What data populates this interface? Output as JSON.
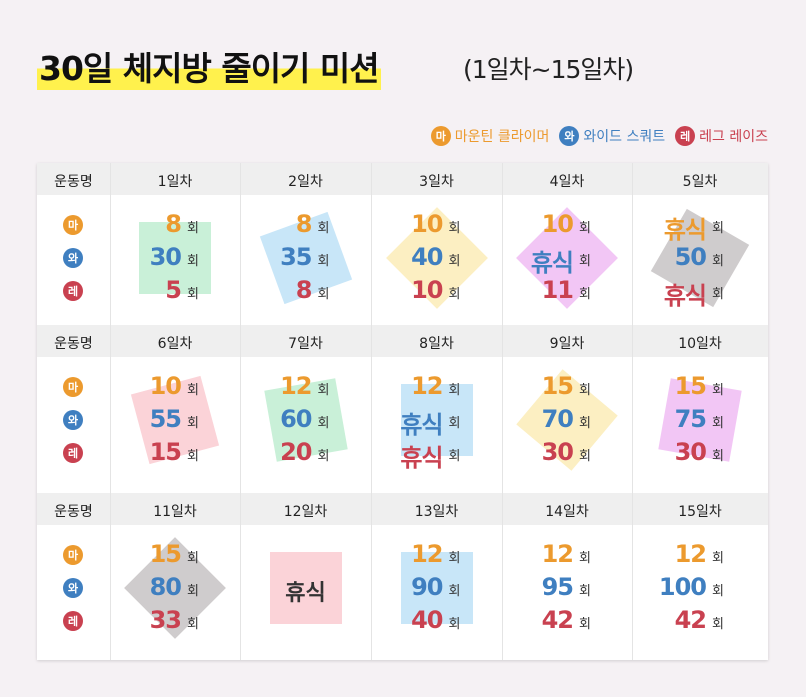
{
  "header": {
    "title": "30일 체지방 줄이기 미션",
    "subtitle": "(1일차~15일차)"
  },
  "legend": [
    {
      "badge": "마",
      "label": "마운틴 클라이머",
      "color": "#ec9a2e"
    },
    {
      "badge": "와",
      "label": "와이드 스쿼트",
      "color": "#3f7fc0"
    },
    {
      "badge": "레",
      "label": "레그 레이즈",
      "color": "#c94150"
    }
  ],
  "exercise_header": "운동명",
  "unit": "회",
  "days": [
    {
      "day": "1일차",
      "entries": [
        8,
        30,
        5
      ],
      "highlight": "#c9f0d8"
    },
    {
      "day": "2일차",
      "entries": [
        8,
        35,
        8
      ],
      "highlight": "#c8e6f8"
    },
    {
      "day": "3일차",
      "entries": [
        10,
        40,
        10
      ],
      "highlight": "#fcefc2"
    },
    {
      "day": "4일차",
      "entries": [
        10,
        "휴식",
        11
      ],
      "highlight": "#f2c6f5"
    },
    {
      "day": "5일차",
      "entries": [
        "휴식",
        50,
        "휴식"
      ],
      "highlight": "#cfcccd"
    },
    {
      "day": "6일차",
      "entries": [
        10,
        55,
        15
      ],
      "highlight": "#fbd3d8"
    },
    {
      "day": "7일차",
      "entries": [
        12,
        60,
        20
      ],
      "highlight": "#c9f0d8"
    },
    {
      "day": "8일차",
      "entries": [
        12,
        "휴식",
        "휴식"
      ],
      "highlight": "#c8e6f8"
    },
    {
      "day": "9일차",
      "entries": [
        15,
        70,
        30
      ],
      "highlight": "#fcefc2"
    },
    {
      "day": "10일차",
      "entries": [
        15,
        75,
        30
      ],
      "highlight": "#f2c6f5"
    },
    {
      "day": "11일차",
      "entries": [
        15,
        80,
        33
      ],
      "highlight": "#cfcccd"
    },
    {
      "day": "12일차",
      "label": "휴식",
      "highlight": "#fbd3d8"
    },
    {
      "day": "13일차",
      "entries": [
        12,
        90,
        40
      ],
      "highlight": "#c8e6f8"
    },
    {
      "day": "14일차",
      "entries": [
        12,
        95,
        42
      ]
    },
    {
      "day": "15일차",
      "entries": [
        12,
        100,
        42
      ]
    }
  ]
}
